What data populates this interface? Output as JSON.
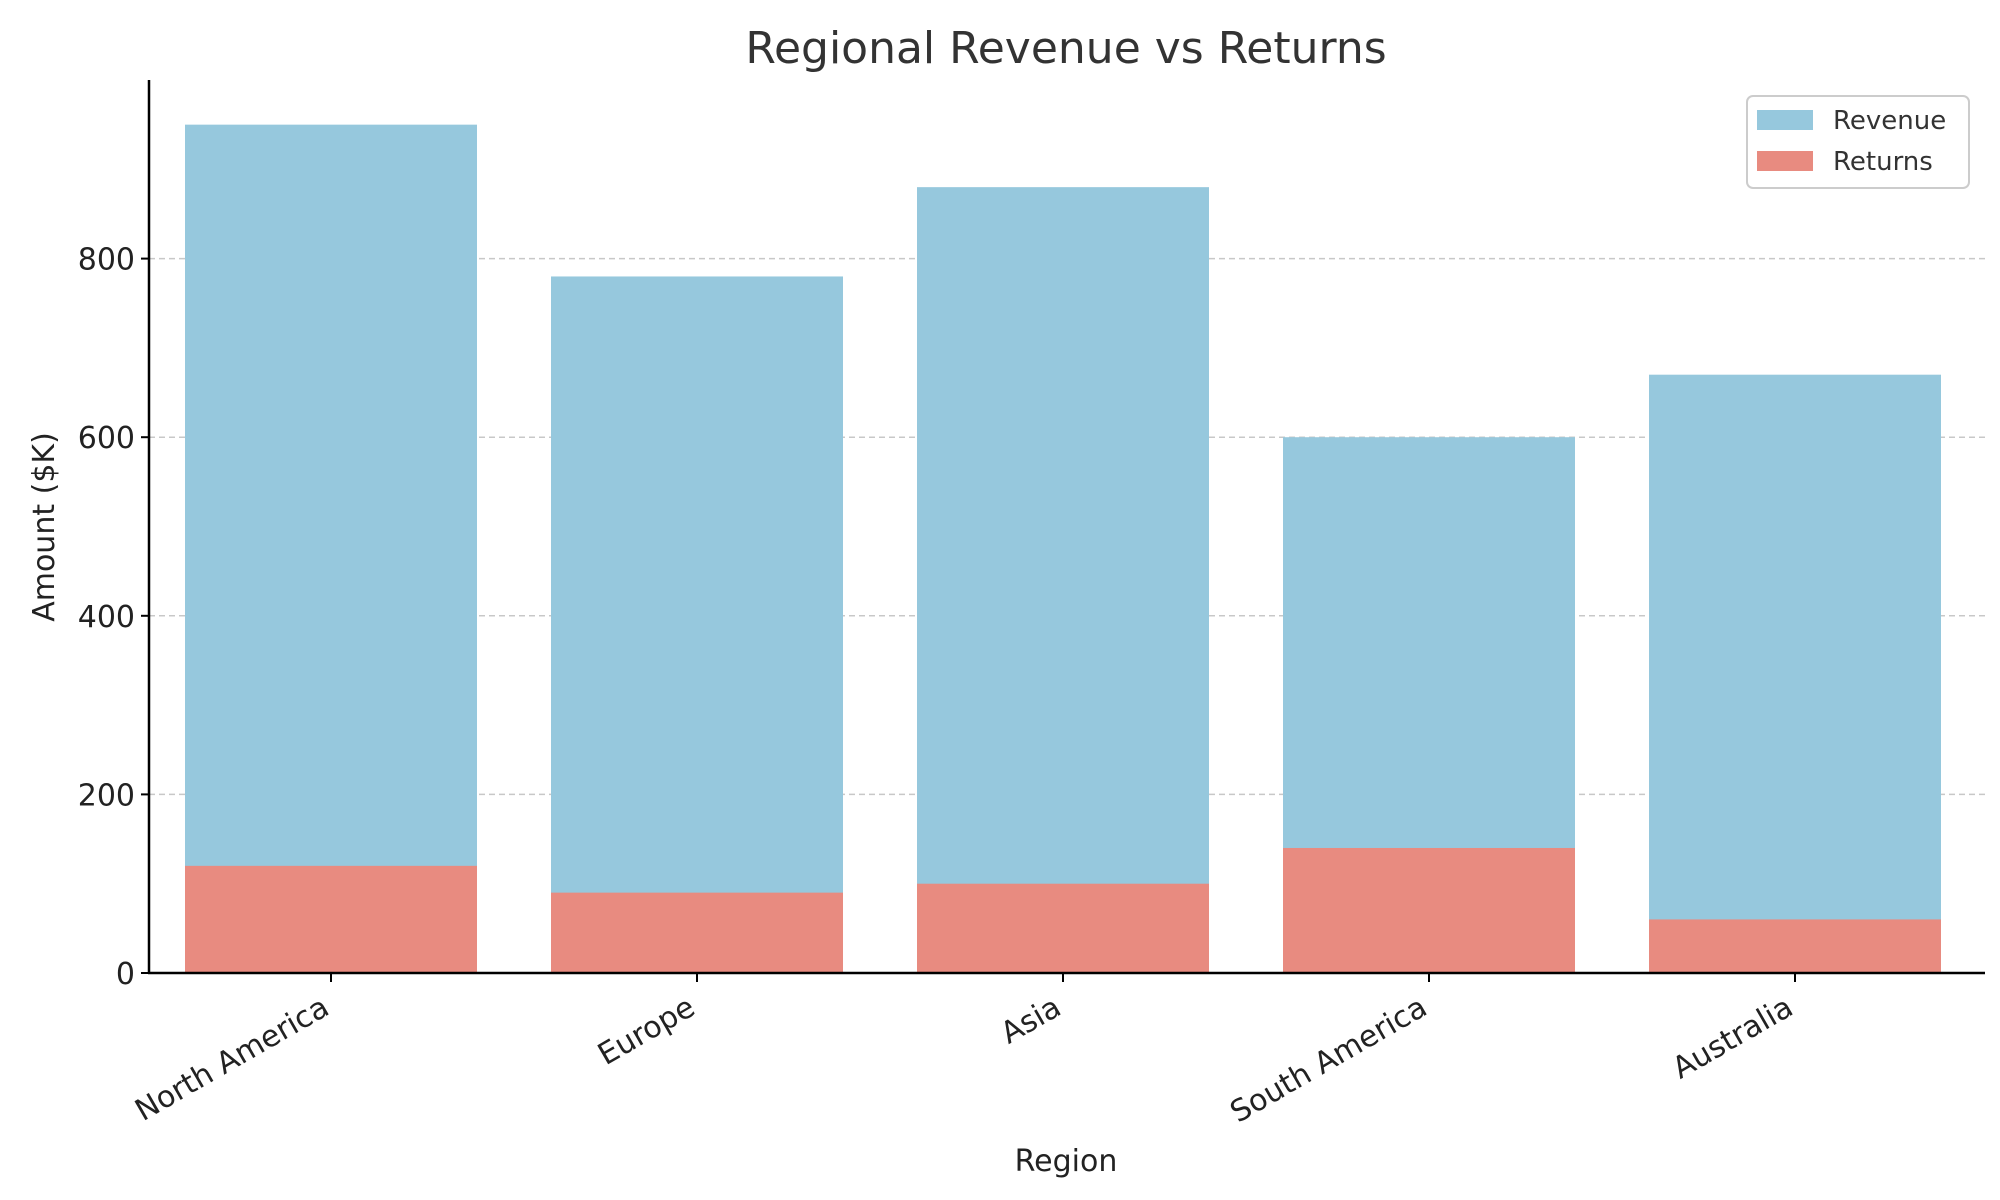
{
  "chart_data": {
    "type": "bar",
    "title": "Regional Revenue vs Returns",
    "xlabel": "Region",
    "ylabel": "Amount ($K)",
    "categories": [
      "North America",
      "Europe",
      "Asia",
      "South America",
      "Australia"
    ],
    "series": [
      {
        "name": "Revenue",
        "values": [
          950,
          780,
          880,
          600,
          670
        ],
        "color": "#96c8dd"
      },
      {
        "name": "Returns",
        "values": [
          120,
          90,
          100,
          140,
          60
        ],
        "color": "#e88b80"
      }
    ],
    "ylim": [
      0,
      1000
    ],
    "yticks": [
      0,
      200,
      400,
      600,
      800
    ],
    "grid": true,
    "grid_axis": "y",
    "legend_position": "top-right",
    "overlapping_bars": true
  }
}
